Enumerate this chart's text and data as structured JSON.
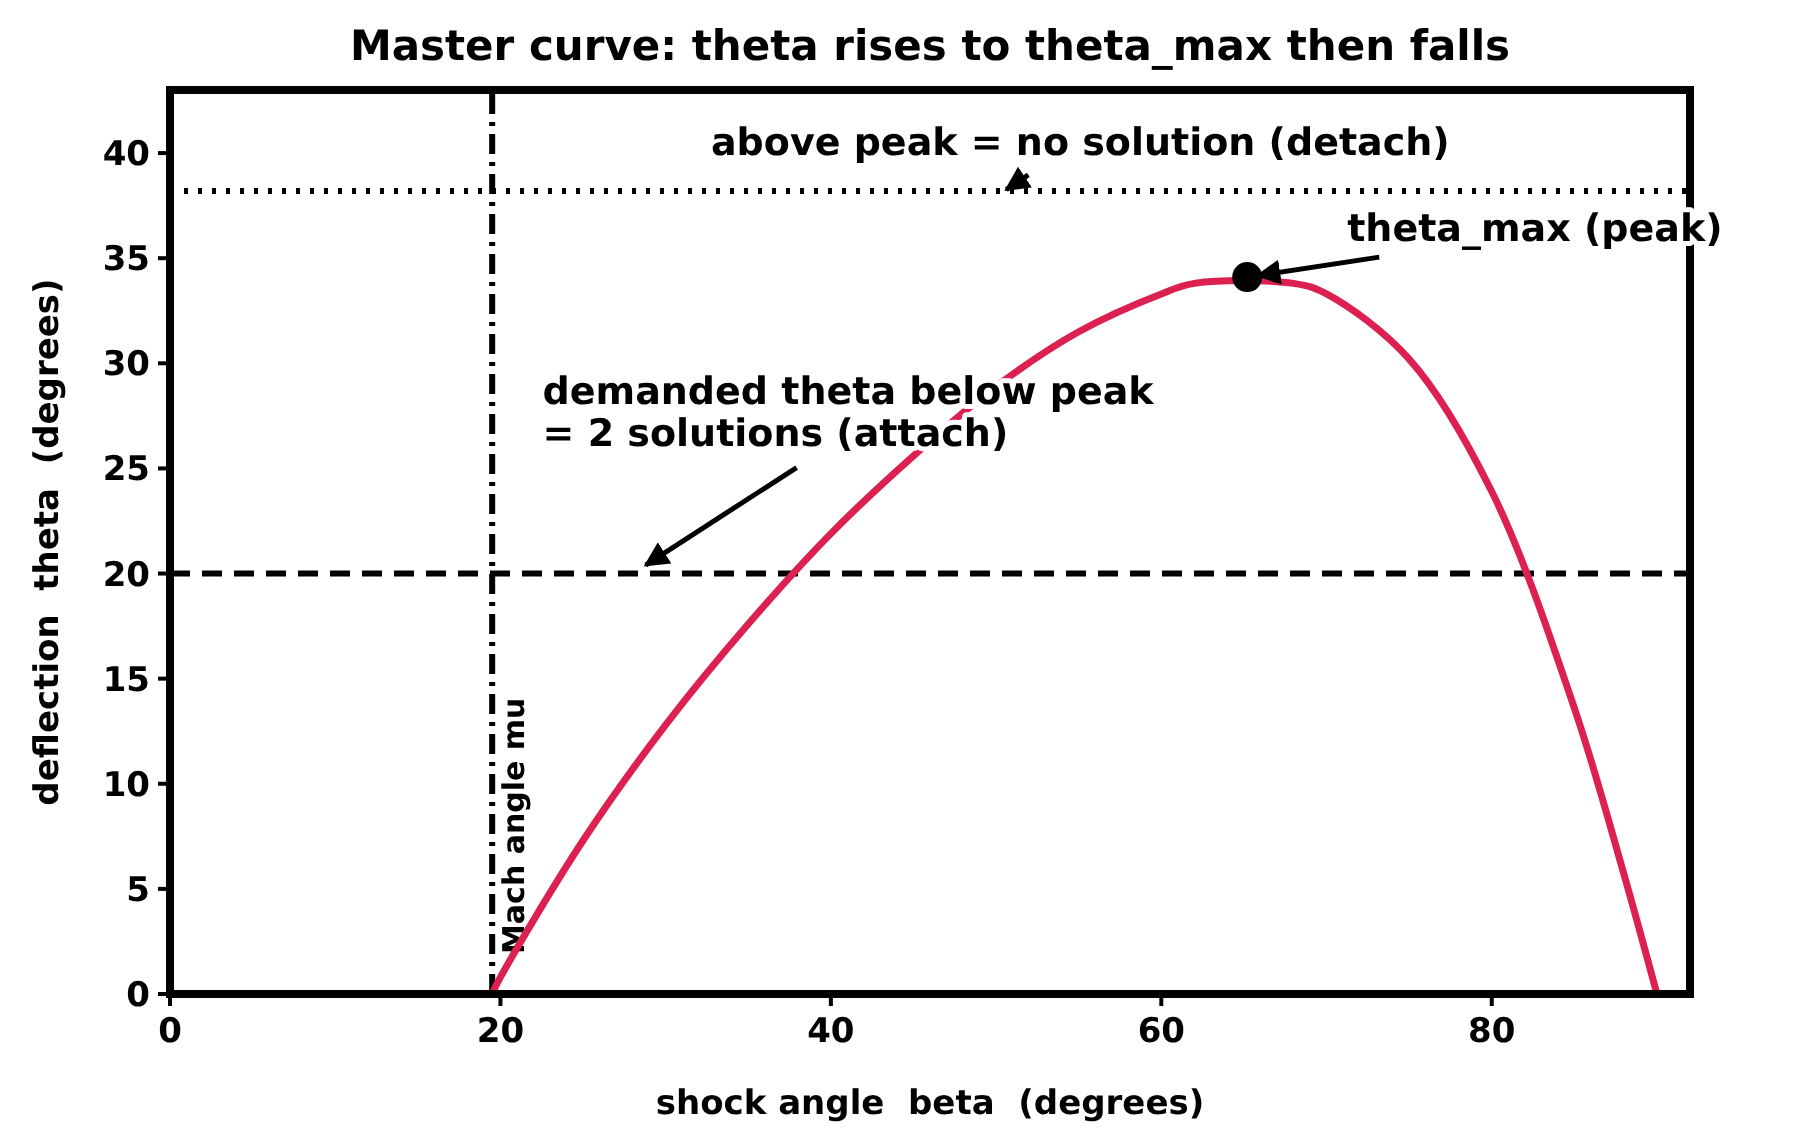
{
  "chart_data": {
    "type": "line",
    "title": "Master curve: theta rises to theta_max then falls",
    "xlabel": "shock angle  beta  (degrees)",
    "ylabel": "deflection  theta  (degrees)",
    "xlim": [
      0,
      92
    ],
    "ylim": [
      0,
      43
    ],
    "xticks": [
      0,
      20,
      40,
      60,
      80
    ],
    "yticks": [
      0,
      5,
      10,
      15,
      20,
      25,
      30,
      35,
      40
    ],
    "grid": false,
    "series": [
      {
        "color": "#dc2150",
        "x": [
          19.5,
          20,
          25,
          30,
          35,
          40,
          45,
          50,
          55,
          60,
          62,
          68,
          70,
          75,
          80,
          85,
          88,
          90
        ],
        "values": [
          0,
          0.8,
          7.3,
          12.8,
          17.6,
          21.9,
          25.6,
          28.9,
          31.5,
          33.3,
          33.8,
          33.8,
          33.3,
          30.2,
          23.9,
          13.6,
          5.7,
          0
        ]
      },
      {
        "type": "scatter",
        "color": "#000000",
        "marker": "circle",
        "x": [
          65.2
        ],
        "values": [
          34.1
        ]
      }
    ],
    "ref_lines": [
      {
        "axis": "y",
        "value": 20,
        "color": "#000000",
        "line_style": "dashed"
      },
      {
        "axis": "y",
        "value": 38.2,
        "color": "#000000",
        "line_style": "dotted"
      },
      {
        "axis": "x",
        "value": 19.5,
        "label": "Mach angle mu",
        "color": "#000000",
        "line_style": "dashdot"
      }
    ],
    "annotations": [
      {
        "text": "theta_max (peak)",
        "x": 65.2,
        "y": 34.1
      },
      {
        "text": "demanded theta below peak\n= 2 solutions (attach)",
        "x": 28,
        "y": 20
      },
      {
        "text": "above peak = no solution (detach)",
        "x": 50.5,
        "y": 38.2
      }
    ]
  }
}
